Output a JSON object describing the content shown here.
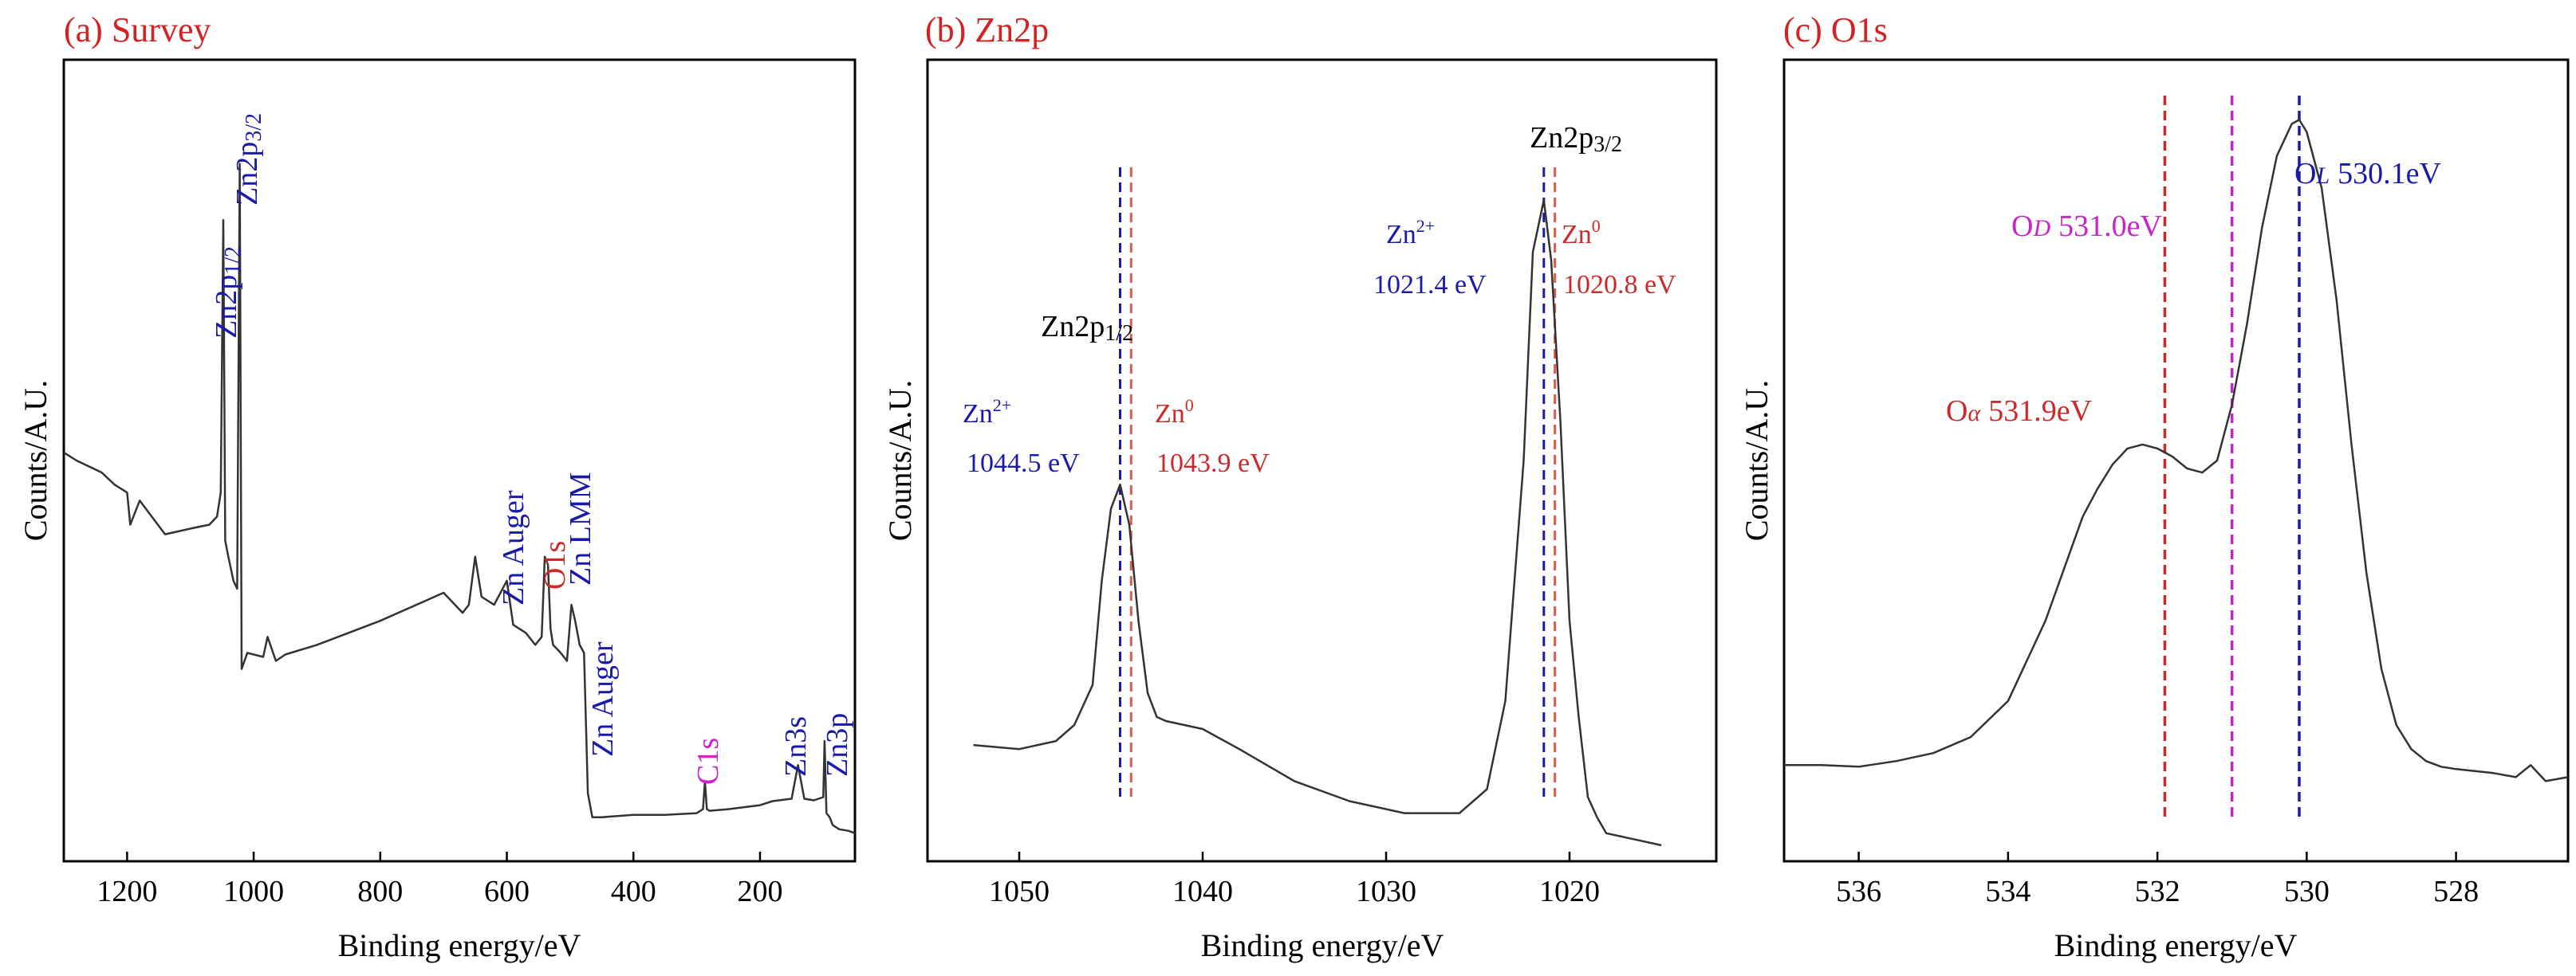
{
  "colors": {
    "title": "#d42222",
    "blue": "#1a1aaa",
    "red": "#cc2a2a",
    "magenta": "#cc22cc",
    "line": "#333333",
    "black": "#000000",
    "salmon": "#e05a50"
  },
  "chart_data": [
    {
      "type": "line",
      "panel_title": "(a) Survey",
      "xlabel": "Binding energy/eV",
      "ylabel": "Counts/A.U.",
      "xlim": [
        1300,
        50
      ],
      "ylim": [
        0,
        100
      ],
      "xticks": [
        1200,
        1000,
        800,
        600,
        400,
        200
      ],
      "x": [
        1300,
        1280,
        1240,
        1220,
        1200,
        1195,
        1180,
        1140,
        1100,
        1070,
        1058,
        1052,
        1048,
        1045,
        1040,
        1032,
        1026,
        1022,
        1019,
        1010,
        985,
        978,
        965,
        950,
        900,
        800,
        700,
        670,
        660,
        650,
        640,
        620,
        600,
        590,
        580,
        570,
        555,
        545,
        540,
        535,
        531,
        527,
        515,
        505,
        498,
        492,
        485,
        478,
        472,
        465,
        450,
        400,
        350,
        300,
        290,
        287,
        284,
        280,
        250,
        200,
        180,
        150,
        140,
        130,
        115,
        100,
        98,
        95,
        90,
        85,
        75,
        60,
        50
      ],
      "y": [
        51.0,
        50.0,
        48.5,
        47.0,
        46.0,
        42.0,
        45.0,
        40.8,
        41.5,
        42.0,
        43.0,
        46.0,
        80.0,
        40.0,
        38.0,
        35.0,
        34.0,
        87.0,
        24.0,
        26.0,
        25.5,
        28.0,
        25.0,
        25.8,
        27.0,
        30.0,
        33.5,
        31.0,
        32.0,
        38.0,
        33.0,
        32.0,
        35.0,
        29.5,
        29.0,
        28.5,
        27.0,
        28.0,
        38.0,
        37.0,
        29.0,
        27.0,
        26.0,
        25.0,
        32.0,
        30.0,
        27.0,
        26.0,
        8.5,
        5.5,
        5.5,
        5.8,
        5.8,
        6.0,
        6.5,
        10.0,
        6.5,
        6.3,
        6.5,
        7.0,
        7.5,
        7.8,
        12.0,
        7.8,
        7.6,
        8.0,
        15.0,
        6.0,
        5.5,
        4.5,
        4.0,
        3.8,
        3.5
      ],
      "annotations": [
        {
          "text": "Zn2p1/2",
          "main": "Zn2p",
          "sub": "1/2",
          "x": 1045,
          "color": "blue"
        },
        {
          "text": "Zn2p3/2",
          "main": "Zn2p",
          "sub": "3/2",
          "x": 1022,
          "color": "blue"
        },
        {
          "text": "Zn Auger",
          "x": 585,
          "color": "blue"
        },
        {
          "text": "O1s",
          "x": 531,
          "color": "red"
        },
        {
          "text": "Zn LMM",
          "x": 498,
          "color": "blue"
        },
        {
          "text": "Zn Auger",
          "x": 470,
          "color": "blue"
        },
        {
          "text": "C1s",
          "x": 285,
          "color": "magenta"
        },
        {
          "text": "Zn3s",
          "x": 140,
          "color": "blue"
        },
        {
          "text": "Zn3p",
          "x": 90,
          "color": "blue"
        }
      ]
    },
    {
      "type": "line",
      "panel_title": "(b) Zn2p",
      "xlabel": "Binding energy/eV",
      "ylabel": "Counts/A.U.",
      "xlim": [
        1055,
        1012
      ],
      "ylim": [
        0,
        100
      ],
      "xticks": [
        1050,
        1040,
        1030,
        1020
      ],
      "x": [
        1052.5,
        1050,
        1048,
        1047,
        1046,
        1045.5,
        1045,
        1044.5,
        1044,
        1043.5,
        1043,
        1042.5,
        1042,
        1041,
        1040,
        1038,
        1035,
        1032,
        1029,
        1026,
        1024.5,
        1023.5,
        1022.5,
        1022,
        1021.4,
        1021,
        1020.5,
        1020,
        1019.5,
        1019,
        1018.5,
        1018,
        1017,
        1016,
        1015
      ],
      "y": [
        14.5,
        14.0,
        15.0,
        17.0,
        22.0,
        35.0,
        44.0,
        47.0,
        42.0,
        30.0,
        21.0,
        18.0,
        17.5,
        17.0,
        16.5,
        14.0,
        10.0,
        7.5,
        6.0,
        6.0,
        9.0,
        20.0,
        50.0,
        76.0,
        82.5,
        75.0,
        55.0,
        30.0,
        18.0,
        8.0,
        5.5,
        3.5,
        3.0,
        2.5,
        2.0
      ],
      "vlines": [
        {
          "x": 1044.5,
          "color": "blue"
        },
        {
          "x": 1043.9,
          "color": "salmon"
        },
        {
          "x": 1021.4,
          "color": "blue"
        },
        {
          "x": 1020.8,
          "color": "salmon"
        }
      ],
      "annotations": [
        {
          "id": "zn2p12",
          "text": "Zn2p1/2",
          "main": "Zn2p",
          "sub": "1/2",
          "color": "black"
        },
        {
          "id": "zn2p32",
          "text": "Zn2p3/2",
          "main": "Zn2p",
          "sub": "3/2",
          "color": "black"
        },
        {
          "id": "a1",
          "text": "Zn2+",
          "main": "Zn",
          "sup": "2+",
          "value": "1044.5 eV",
          "color": "blue"
        },
        {
          "id": "a2",
          "text": "Zn0",
          "main": "Zn",
          "sup": "0",
          "value": "1043.9 eV",
          "color": "red"
        },
        {
          "id": "a3",
          "text": "Zn2+",
          "main": "Zn",
          "sup": "2+",
          "value": "1021.4 eV",
          "color": "blue"
        },
        {
          "id": "a4",
          "text": "Zn0",
          "main": "Zn",
          "sup": "0",
          "value": "1020.8 eV",
          "color": "red"
        }
      ]
    },
    {
      "type": "line",
      "panel_title": "(c) O1s",
      "xlabel": "Binding energy/eV",
      "ylabel": "Counts/A.U.",
      "xlim": [
        537,
        526.5
      ],
      "ylim": [
        0,
        100
      ],
      "xticks": [
        536,
        534,
        532,
        530,
        528
      ],
      "x": [
        537,
        536.5,
        536,
        535.5,
        535,
        534.5,
        534,
        533.5,
        533,
        532.8,
        532.6,
        532.4,
        532.2,
        532.0,
        531.8,
        531.6,
        531.4,
        531.2,
        531.0,
        530.8,
        530.6,
        530.4,
        530.2,
        530.1,
        530.0,
        529.8,
        529.6,
        529.4,
        529.2,
        529.0,
        528.8,
        528.6,
        528.4,
        528.2,
        528.0,
        527.5,
        527.2,
        527.0,
        526.8,
        526.5
      ],
      "y": [
        12.0,
        12.0,
        11.8,
        12.5,
        13.5,
        15.5,
        20.0,
        30.0,
        43.0,
        46.5,
        49.5,
        51.5,
        52.0,
        51.5,
        50.5,
        49.0,
        48.5,
        50.0,
        57.0,
        67.0,
        79.0,
        88.0,
        92.0,
        92.5,
        91.0,
        84.0,
        70.0,
        52.0,
        36.0,
        24.0,
        17.0,
        14.0,
        12.5,
        11.8,
        11.5,
        11.0,
        10.5,
        12.0,
        10.0,
        10.5
      ],
      "vlines": [
        {
          "x": 531.9,
          "color": "red"
        },
        {
          "x": 531.0,
          "color": "magenta"
        },
        {
          "x": 530.1,
          "color": "blue"
        }
      ],
      "annotations": [
        {
          "id": "oa",
          "text": "Oα 531.9eV",
          "main": "O",
          "italic": "α",
          "value": "531.9eV",
          "color": "red"
        },
        {
          "id": "od",
          "text": "OD 531.0eV",
          "main": "O",
          "italic": "D",
          "value": "531.0eV",
          "color": "magenta"
        },
        {
          "id": "ol",
          "text": "OL 530.1eV",
          "main": "O",
          "italic": "L",
          "value": "530.1eV",
          "color": "blue"
        }
      ]
    }
  ]
}
